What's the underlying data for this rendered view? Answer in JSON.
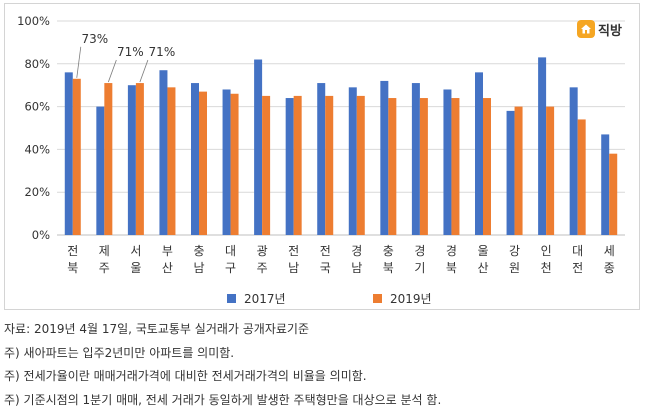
{
  "logo": {
    "text": "직방",
    "icon": "house-icon"
  },
  "colors": {
    "series2017": "#4472C4",
    "series2019": "#ED7D31",
    "grid": "#d9d9d9"
  },
  "chart_data": {
    "type": "bar",
    "categories": [
      "전북",
      "제주",
      "서울",
      "부산",
      "충남",
      "대구",
      "광주",
      "전남",
      "전국",
      "경남",
      "충북",
      "경기",
      "경북",
      "울산",
      "강원",
      "인천",
      "대전",
      "세종"
    ],
    "series": [
      {
        "name": "2017년",
        "color": "#4472C4",
        "values": [
          76,
          60,
          70,
          77,
          71,
          68,
          82,
          64,
          71,
          69,
          72,
          71,
          68,
          76,
          58,
          83,
          69,
          47
        ]
      },
      {
        "name": "2019년",
        "color": "#ED7D31",
        "values": [
          73,
          71,
          71,
          69,
          67,
          66,
          65,
          65,
          65,
          65,
          64,
          64,
          64,
          64,
          60,
          60,
          54,
          38
        ]
      }
    ],
    "yticks": [
      "0%",
      "20%",
      "40%",
      "60%",
      "80%",
      "100%"
    ],
    "ylim": [
      0,
      100
    ],
    "grid": "horizontal",
    "legend_position": "bottom",
    "annotations": [
      {
        "category": "전북",
        "series": "2019년",
        "text": "73%"
      },
      {
        "category": "제주",
        "series": "2019년",
        "text": "71%"
      },
      {
        "category": "서울",
        "series": "2019년",
        "text": "71%"
      }
    ]
  },
  "notes": [
    "자료: 2019년 4월 17일, 국토교통부 실거래가 공개자료기준",
    "주) 새아파트는 입주2년미만 아파트를 의미함.",
    "주) 전세가율이란 매매거래가격에 대비한 전세거래가격의 비율을 의미함.",
    "주) 기준시점의 1분기 매매, 전세 거래가 동일하게 발생한 주택형만을 대상으로 분석 함."
  ]
}
